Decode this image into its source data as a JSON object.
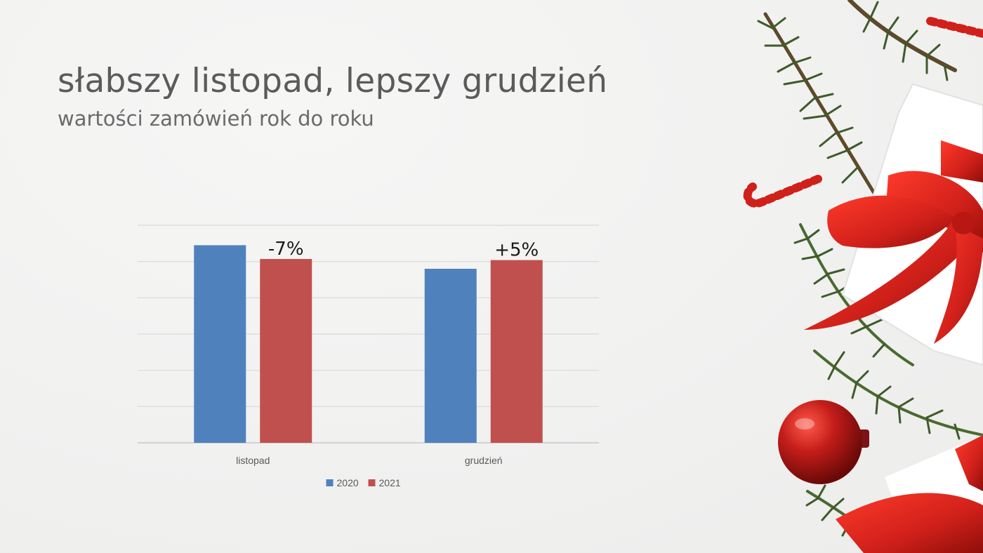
{
  "slide": {
    "title": "słabszy listopad, lepszy grudzień",
    "subtitle": "wartości zamówień rok do roku"
  },
  "chart_data": {
    "type": "bar",
    "categories": [
      "listopad",
      "grudzień"
    ],
    "series": [
      {
        "name": "2020",
        "values": [
          5.45,
          4.8
        ],
        "color": "#4f81bd"
      },
      {
        "name": "2021",
        "values": [
          5.07,
          5.04
        ],
        "color": "#c0504d"
      }
    ],
    "annotations": [
      {
        "category": "listopad",
        "series": "2021",
        "text": "-7%"
      },
      {
        "category": "grudzień",
        "series": "2021",
        "text": "+5%"
      }
    ],
    "ylim": [
      0,
      6
    ],
    "grid": true,
    "y_axis_labels_shown": false,
    "legend": "bottom-center"
  },
  "decoration": {
    "items": [
      "pine-branch",
      "candy-cane",
      "gift-box",
      "red-ribbon",
      "red-ornament"
    ],
    "colors": {
      "pine": "#3f5a2a",
      "ribbon": "#d0201a",
      "ornament": "#c41d1a",
      "gift": "#ffffff"
    }
  }
}
